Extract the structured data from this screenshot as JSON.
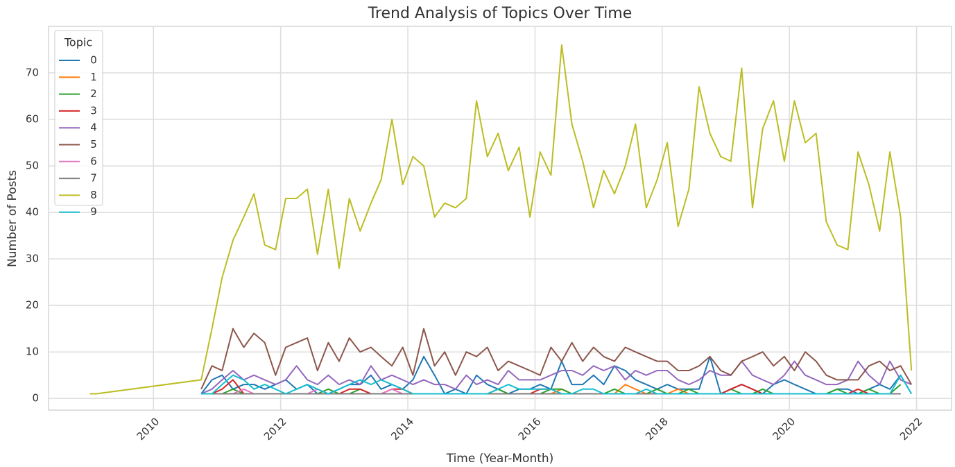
{
  "chart_data": {
    "type": "line",
    "title": "Trend Analysis of Topics Over Time",
    "x_label": "Time (Year-Month)",
    "y_label": "Number of Posts",
    "legend_title": "Topic",
    "legend_position": "upper left",
    "grid": true,
    "x": [
      2009.0,
      2009.1,
      2010.75,
      2010.92,
      2011.08,
      2011.25,
      2011.42,
      2011.58,
      2011.75,
      2011.92,
      2012.08,
      2012.25,
      2012.42,
      2012.58,
      2012.75,
      2012.92,
      2013.08,
      2013.25,
      2013.42,
      2013.58,
      2013.75,
      2013.92,
      2014.08,
      2014.25,
      2014.42,
      2014.58,
      2014.75,
      2014.92,
      2015.08,
      2015.25,
      2015.42,
      2015.58,
      2015.75,
      2015.92,
      2016.08,
      2016.25,
      2016.42,
      2016.58,
      2016.75,
      2016.92,
      2017.08,
      2017.25,
      2017.42,
      2017.58,
      2017.75,
      2017.92,
      2018.08,
      2018.25,
      2018.42,
      2018.58,
      2018.75,
      2018.92,
      2019.08,
      2019.25,
      2019.42,
      2019.58,
      2019.75,
      2019.92,
      2020.08,
      2020.25,
      2020.42,
      2020.58,
      2020.75,
      2020.92,
      2021.08,
      2021.25,
      2021.42,
      2021.58,
      2021.75,
      2021.92
    ],
    "xlim": [
      2008.35,
      2022.55
    ],
    "xticks": [
      2010,
      2012,
      2014,
      2016,
      2018,
      2020,
      2022
    ],
    "ylim": [
      -2.5,
      80
    ],
    "yticks": [
      0,
      10,
      20,
      30,
      40,
      50,
      60,
      70
    ],
    "series": [
      {
        "name": "0",
        "color": "#1f77b4",
        "values": [
          null,
          null,
          1,
          4,
          5,
          2,
          3,
          3,
          2,
          3,
          4,
          2,
          3,
          1,
          1,
          2,
          3,
          3,
          5,
          2,
          3,
          2,
          4,
          9,
          5,
          1,
          2,
          1,
          5,
          3,
          2,
          1,
          2,
          2,
          3,
          2,
          8,
          3,
          3,
          5,
          3,
          7,
          6,
          4,
          3,
          2,
          3,
          2,
          2,
          2,
          9,
          1,
          2,
          3,
          2,
          1,
          3,
          4,
          3,
          2,
          1,
          1,
          2,
          2,
          1,
          2,
          3,
          2,
          5,
          1
        ]
      },
      {
        "name": "1",
        "color": "#ff7f0e",
        "values": [
          null,
          null,
          1,
          1,
          1,
          1,
          1,
          1,
          1,
          1,
          1,
          1,
          1,
          1,
          1,
          1,
          1,
          1,
          1,
          1,
          1,
          1,
          1,
          1,
          1,
          1,
          1,
          1,
          1,
          1,
          1,
          1,
          1,
          1,
          1,
          1,
          2,
          1,
          1,
          1,
          1,
          1,
          3,
          2,
          1,
          1,
          1,
          2,
          1,
          1,
          1,
          1,
          1,
          1,
          1,
          1,
          1,
          1,
          1,
          1,
          1,
          1,
          1,
          1,
          1,
          1,
          1,
          1,
          1,
          null
        ]
      },
      {
        "name": "2",
        "color": "#2ca02c",
        "values": [
          null,
          null,
          1,
          1,
          1,
          2,
          1,
          1,
          1,
          1,
          1,
          1,
          1,
          1,
          2,
          1,
          1,
          2,
          1,
          1,
          1,
          1,
          1,
          1,
          1,
          1,
          1,
          1,
          1,
          1,
          2,
          1,
          1,
          1,
          1,
          2,
          2,
          1,
          1,
          1,
          1,
          2,
          1,
          1,
          1,
          2,
          1,
          1,
          2,
          1,
          1,
          1,
          2,
          1,
          1,
          2,
          1,
          1,
          1,
          1,
          1,
          1,
          2,
          1,
          1,
          2,
          1,
          1,
          3,
          null
        ]
      },
      {
        "name": "3",
        "color": "#d62728",
        "values": [
          null,
          null,
          1,
          1,
          2,
          4,
          1,
          1,
          1,
          1,
          1,
          1,
          1,
          1,
          1,
          1,
          2,
          2,
          1,
          1,
          2,
          2,
          1,
          1,
          1,
          1,
          1,
          1,
          1,
          1,
          1,
          1,
          1,
          1,
          2,
          2,
          1,
          1,
          1,
          1,
          1,
          1,
          1,
          1,
          1,
          1,
          1,
          1,
          1,
          1,
          1,
          1,
          2,
          3,
          2,
          1,
          1,
          1,
          1,
          1,
          1,
          1,
          1,
          1,
          2,
          1,
          1,
          1,
          1,
          null
        ]
      },
      {
        "name": "4",
        "color": "#9467bd",
        "values": [
          null,
          null,
          1,
          2,
          4,
          6,
          4,
          5,
          4,
          3,
          4,
          7,
          4,
          3,
          5,
          3,
          4,
          3,
          7,
          4,
          5,
          4,
          3,
          4,
          3,
          3,
          2,
          5,
          3,
          4,
          3,
          6,
          4,
          4,
          4,
          5,
          6,
          6,
          5,
          7,
          6,
          7,
          4,
          6,
          5,
          6,
          6,
          4,
          3,
          4,
          6,
          5,
          5,
          8,
          5,
          4,
          3,
          5,
          8,
          5,
          4,
          3,
          3,
          4,
          8,
          5,
          3,
          8,
          4,
          3
        ]
      },
      {
        "name": "5",
        "color": "#8c564b",
        "values": [
          null,
          null,
          2,
          7,
          6,
          15,
          11,
          14,
          12,
          5,
          11,
          12,
          13,
          6,
          12,
          8,
          13,
          10,
          11,
          9,
          7,
          11,
          5,
          15,
          7,
          10,
          5,
          10,
          9,
          11,
          6,
          8,
          7,
          6,
          5,
          11,
          8,
          12,
          8,
          11,
          9,
          8,
          11,
          10,
          9,
          8,
          8,
          6,
          6,
          7,
          9,
          6,
          5,
          8,
          9,
          10,
          7,
          9,
          6,
          10,
          8,
          5,
          4,
          4,
          4,
          7,
          8,
          6,
          7,
          3
        ]
      },
      {
        "name": "6",
        "color": "#e377c2",
        "values": [
          null,
          null,
          1,
          1,
          1,
          1,
          2,
          1,
          1,
          1,
          1,
          1,
          1,
          2,
          1,
          1,
          1,
          1,
          1,
          1,
          2,
          1,
          1,
          1,
          1,
          1,
          1,
          1,
          1,
          1,
          1,
          1,
          1,
          1,
          1,
          1,
          1,
          1,
          1,
          1,
          1,
          1,
          1,
          1,
          1,
          1,
          1,
          1,
          1,
          1,
          1,
          1,
          1,
          1,
          1,
          1,
          1,
          1,
          1,
          1,
          1,
          1,
          1,
          1,
          1,
          1,
          1,
          1,
          1,
          null
        ]
      },
      {
        "name": "7",
        "color": "#7f7f7f",
        "values": [
          null,
          null,
          1,
          1,
          1,
          1,
          1,
          1,
          1,
          1,
          1,
          1,
          1,
          1,
          1,
          1,
          1,
          1,
          1,
          1,
          1,
          1,
          1,
          1,
          1,
          1,
          1,
          1,
          1,
          1,
          1,
          1,
          1,
          1,
          1,
          1,
          1,
          1,
          1,
          1,
          1,
          1,
          1,
          1,
          1,
          1,
          1,
          1,
          1,
          1,
          1,
          1,
          1,
          1,
          1,
          1,
          1,
          1,
          1,
          1,
          1,
          1,
          1,
          1,
          1,
          1,
          1,
          1,
          1,
          null
        ]
      },
      {
        "name": "8",
        "color": "#bcbd22",
        "values": [
          1,
          1,
          4,
          15,
          26,
          34,
          39,
          44,
          33,
          32,
          43,
          43,
          45,
          31,
          45,
          28,
          43,
          36,
          42,
          47,
          60,
          46,
          52,
          50,
          39,
          42,
          41,
          43,
          64,
          52,
          57,
          49,
          54,
          39,
          53,
          48,
          76,
          59,
          51,
          41,
          49,
          44,
          50,
          59,
          41,
          47,
          55,
          37,
          45,
          67,
          57,
          52,
          51,
          71,
          41,
          58,
          64,
          51,
          64,
          55,
          57,
          38,
          33,
          32,
          53,
          46,
          36,
          53,
          39,
          6
        ]
      },
      {
        "name": "9",
        "color": "#17becf",
        "values": [
          null,
          null,
          1,
          1,
          3,
          5,
          4,
          2,
          3,
          2,
          1,
          2,
          3,
          2,
          1,
          2,
          3,
          4,
          3,
          4,
          3,
          2,
          1,
          1,
          1,
          1,
          1,
          1,
          1,
          1,
          2,
          3,
          2,
          2,
          2,
          2,
          1,
          1,
          2,
          2,
          1,
          1,
          1,
          1,
          2,
          1,
          1,
          1,
          1,
          1,
          1,
          1,
          1,
          1,
          1,
          1,
          1,
          1,
          1,
          1,
          1,
          1,
          1,
          1,
          1,
          1,
          1,
          1,
          5,
          1
        ]
      }
    ]
  }
}
